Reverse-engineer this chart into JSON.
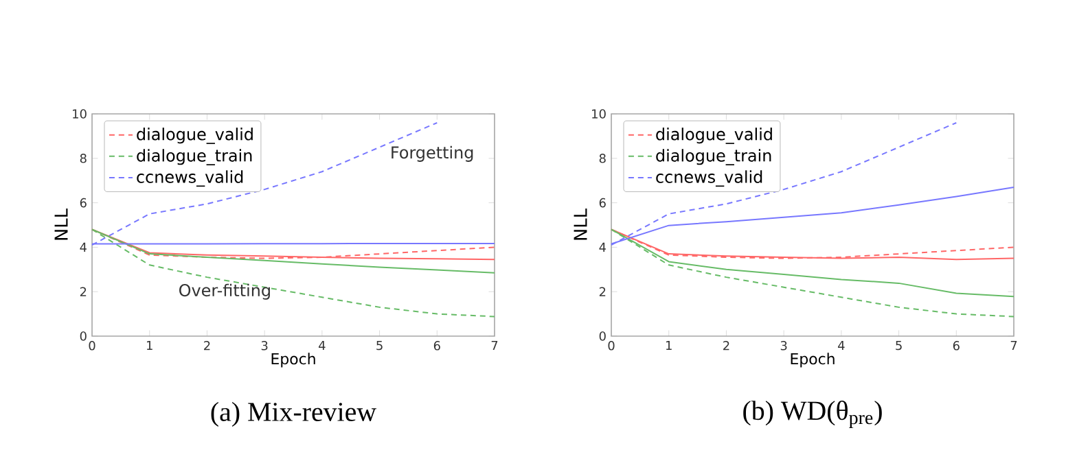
{
  "chart_data": [
    {
      "type": "line",
      "title": "(a) Mix-review",
      "xlabel": "Epoch",
      "ylabel": "NLL",
      "x": [
        0,
        1,
        2,
        3,
        4,
        5,
        6,
        7
      ],
      "xlim": [
        0,
        7
      ],
      "ylim": [
        0,
        10
      ],
      "xticks": [
        0,
        1,
        2,
        3,
        4,
        5,
        6,
        7
      ],
      "yticks": [
        0,
        2,
        4,
        6,
        8,
        10
      ],
      "legend": "top left",
      "grid": false,
      "annotations": [
        "Forgetting",
        "Over-fitting"
      ],
      "series": [
        {
          "name": "dialogue_valid",
          "color": "#ff6666",
          "line_style": "dashed",
          "values": [
            4.8,
            3.65,
            3.55,
            3.5,
            3.55,
            3.7,
            3.85,
            4.0
          ]
        },
        {
          "name": "dialogue_train",
          "color": "#66bb66",
          "line_style": "dashed",
          "values": [
            4.8,
            3.2,
            2.65,
            2.2,
            1.75,
            1.3,
            1.0,
            0.88
          ]
        },
        {
          "name": "ccnews_valid",
          "color": "#7777ff",
          "line_style": "dashed",
          "values": [
            4.1,
            5.5,
            5.95,
            6.6,
            7.4,
            8.5,
            9.6,
            null
          ]
        },
        {
          "color": "#ff6666",
          "line_style": "solid",
          "values": [
            4.8,
            3.75,
            3.65,
            3.6,
            3.55,
            3.5,
            3.48,
            3.45
          ]
        },
        {
          "color": "#66bb66",
          "line_style": "solid",
          "values": [
            4.8,
            3.7,
            3.55,
            3.4,
            3.25,
            3.1,
            2.98,
            2.85
          ]
        },
        {
          "color": "#7777ff",
          "line_style": "solid",
          "values": [
            4.15,
            4.15,
            4.15,
            4.16,
            4.16,
            4.17,
            4.17,
            4.17
          ]
        }
      ]
    },
    {
      "type": "line",
      "title": "(b) WD(θ$_{pre}$)",
      "xlabel": "Epoch",
      "ylabel": "NLL",
      "x": [
        0,
        1,
        2,
        3,
        4,
        5,
        6,
        7
      ],
      "xlim": [
        0,
        7
      ],
      "ylim": [
        0,
        10
      ],
      "xticks": [
        0,
        1,
        2,
        3,
        4,
        5,
        6,
        7
      ],
      "yticks": [
        0,
        2,
        4,
        6,
        8,
        10
      ],
      "legend": "top left",
      "grid": false,
      "series": [
        {
          "name": "dialogue_valid",
          "color": "#ff6666",
          "line_style": "dashed",
          "values": [
            4.8,
            3.65,
            3.55,
            3.5,
            3.55,
            3.7,
            3.85,
            4.0
          ]
        },
        {
          "name": "dialogue_train",
          "color": "#66bb66",
          "line_style": "dashed",
          "values": [
            4.8,
            3.2,
            2.65,
            2.2,
            1.75,
            1.3,
            1.0,
            0.88
          ]
        },
        {
          "name": "ccnews_valid",
          "color": "#7777ff",
          "line_style": "dashed",
          "values": [
            4.1,
            5.5,
            5.95,
            6.6,
            7.4,
            8.5,
            9.6,
            null
          ]
        },
        {
          "color": "#ff6666",
          "line_style": "solid",
          "values": [
            4.8,
            3.7,
            3.6,
            3.55,
            3.5,
            3.55,
            3.45,
            3.5
          ]
        },
        {
          "color": "#66bb66",
          "line_style": "solid",
          "values": [
            4.8,
            3.35,
            3.0,
            2.78,
            2.55,
            2.38,
            1.93,
            1.78
          ]
        },
        {
          "color": "#7777ff",
          "line_style": "solid",
          "values": [
            4.15,
            4.98,
            5.15,
            5.35,
            5.55,
            5.9,
            6.28,
            6.7
          ]
        }
      ]
    }
  ]
}
